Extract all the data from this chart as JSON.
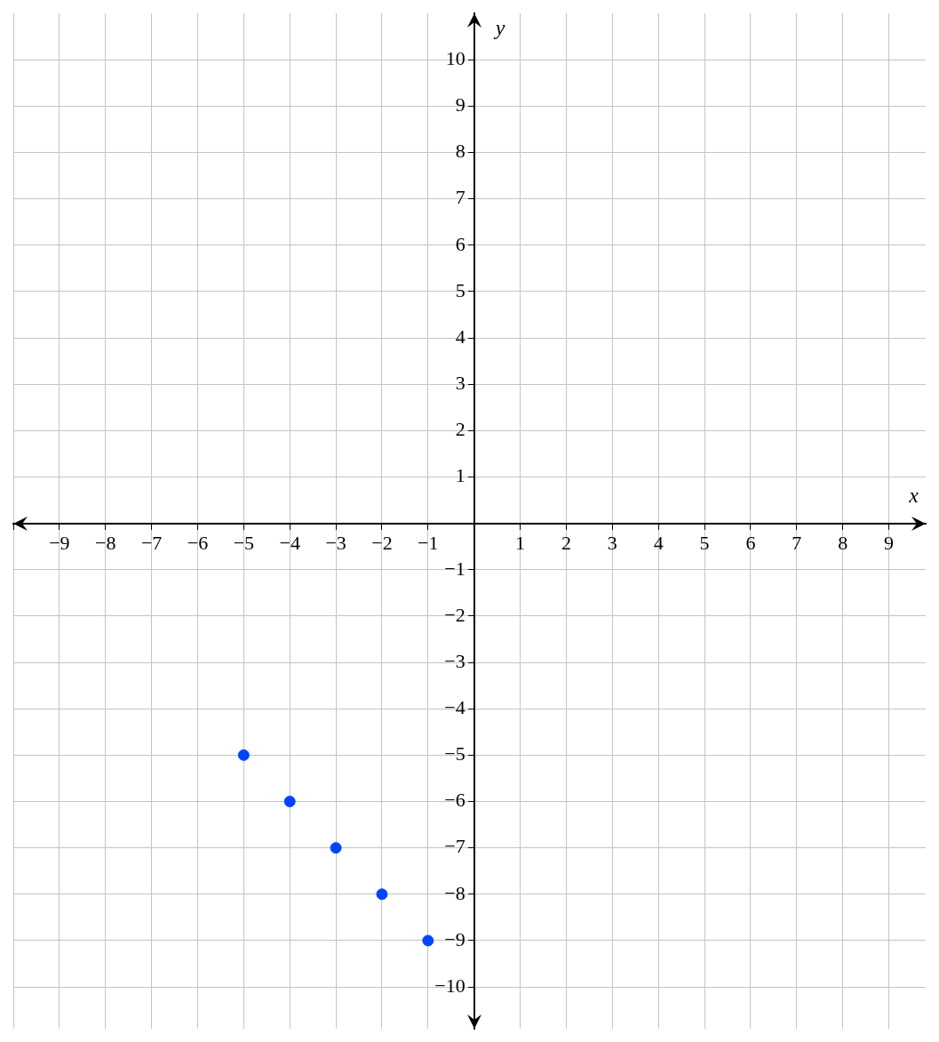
{
  "chart_data": {
    "type": "scatter",
    "xlabel": "x",
    "ylabel": "y",
    "x": [
      -5,
      -4,
      -3,
      -2,
      -1
    ],
    "series": [
      {
        "color": "#0044ff",
        "values": [
          -5,
          -6,
          -7,
          -8,
          -9
        ]
      }
    ],
    "xlim": [
      -10,
      9.8
    ],
    "ylim": [
      -10.9,
      11
    ],
    "xticks": [
      {
        "value": -10,
        "label": null
      },
      -9,
      -8,
      -7,
      -6,
      -5,
      -4,
      -3,
      -2,
      -1,
      {
        "value": 0,
        "label": null
      },
      1,
      2,
      3,
      4,
      5,
      6,
      7,
      8,
      9
    ],
    "yticks": [
      -10,
      -9,
      -8,
      -7,
      -6,
      -5,
      -4,
      -3,
      -2,
      -1,
      {
        "value": 0,
        "label": null
      },
      1,
      2,
      3,
      4,
      5,
      6,
      7,
      8,
      9,
      10
    ],
    "grid": true,
    "marker": "circle",
    "legend": false
  }
}
